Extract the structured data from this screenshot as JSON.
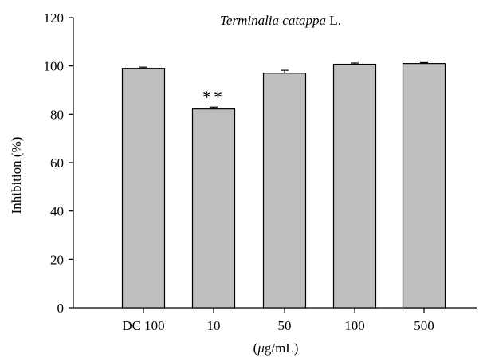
{
  "chart_data": {
    "type": "bar",
    "title_italic": "Terminalia catappa",
    "title_rest": " L.",
    "xlabel_prefix": "(",
    "xlabel_mu": "μ",
    "xlabel_suffix": "g/mL)",
    "ylabel": "Inhibition (%)",
    "categories": [
      "DC 100",
      "10",
      "50",
      "100",
      "500"
    ],
    "values": [
      99,
      82.2,
      97,
      100.7,
      101
    ],
    "errors": [
      0.5,
      0.8,
      1.2,
      0.5,
      0.4
    ],
    "annotations": [
      {
        "category": "10",
        "text": "**"
      }
    ],
    "ylim": [
      0,
      120
    ],
    "yticks": [
      0,
      20,
      40,
      60,
      80,
      100,
      120
    ],
    "bar_color": "#bfbfbf",
    "edge_color": "#000000",
    "grid": false
  }
}
